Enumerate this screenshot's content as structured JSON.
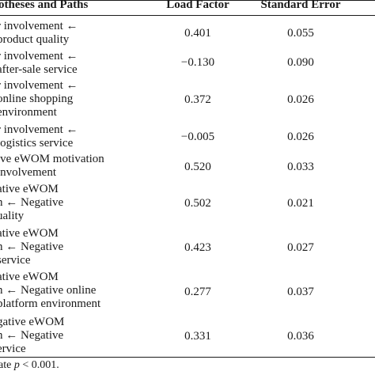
{
  "header": {
    "col1": "otheses and Paths",
    "col2": "Load Factor",
    "col3": "Standard Error"
  },
  "rows": [
    {
      "path": [
        "r involvement ←",
        "product quality"
      ],
      "load": "0.401",
      "se": "0.055"
    },
    {
      "path": [
        "r involvement ←",
        "after-sale service"
      ],
      "load": "−0.130",
      "se": "0.090"
    },
    {
      "path": [
        "r involvement ←",
        "online shopping",
        "environment"
      ],
      "load": "0.372",
      "se": "0.026"
    },
    {
      "path": [
        "r involvement ←",
        "logistics service"
      ],
      "load": "−0.005",
      "se": "0.026"
    },
    {
      "path": [
        "ive eWOM motivation",
        "involvement"
      ],
      "load": "0.520",
      "se": "0.033"
    },
    {
      "path": [
        "ative eWOM",
        "n ← Negative",
        "uality"
      ],
      "load": "0.502",
      "se": "0.021"
    },
    {
      "path": [
        "ative eWOM",
        "n ← Negative",
        "service"
      ],
      "load": "0.423",
      "se": "0.027"
    },
    {
      "path": [
        "ative eWOM",
        "n ← Negative online",
        "platform environment"
      ],
      "load": "0.277",
      "se": "0.037"
    },
    {
      "path": [
        "gative eWOM",
        "n ← Negative",
        "ervice"
      ],
      "load": "0.331",
      "se": "0.036"
    }
  ],
  "footnote": {
    "prefix": "ate ",
    "var": "p",
    "suffix": " < 0.001."
  }
}
